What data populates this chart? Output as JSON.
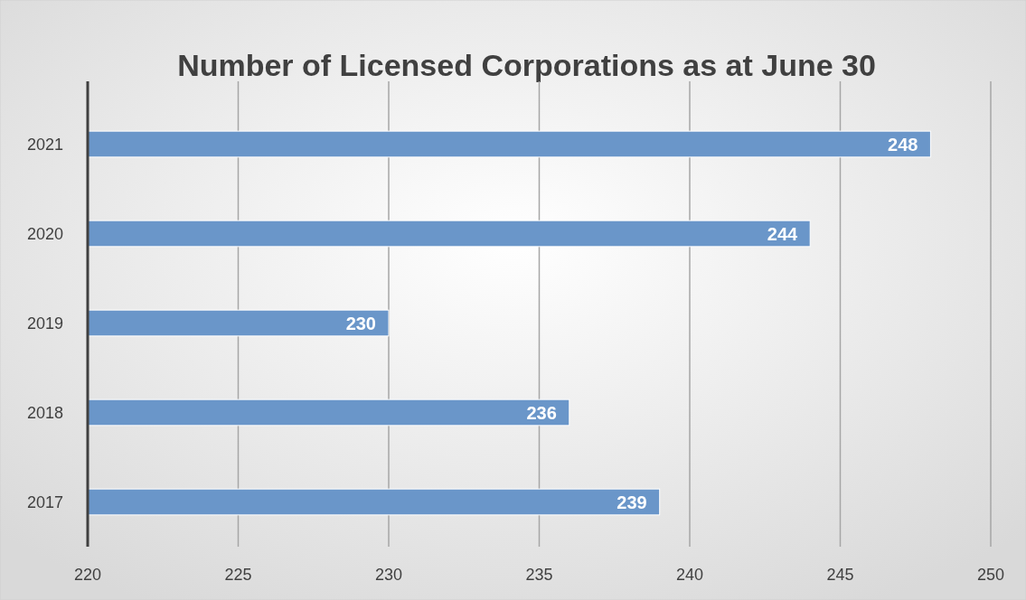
{
  "chart_data": {
    "type": "bar",
    "orientation": "horizontal",
    "title": "Number of Licensed Corporations as at June 30",
    "categories": [
      "2021",
      "2020",
      "2019",
      "2018",
      "2017"
    ],
    "values": [
      248,
      244,
      230,
      236,
      239
    ],
    "color": "#6a96c9",
    "xlim": [
      220,
      250
    ],
    "xticks": [
      220,
      225,
      230,
      235,
      240,
      245,
      250
    ],
    "grid": "x",
    "data_labels": true
  }
}
